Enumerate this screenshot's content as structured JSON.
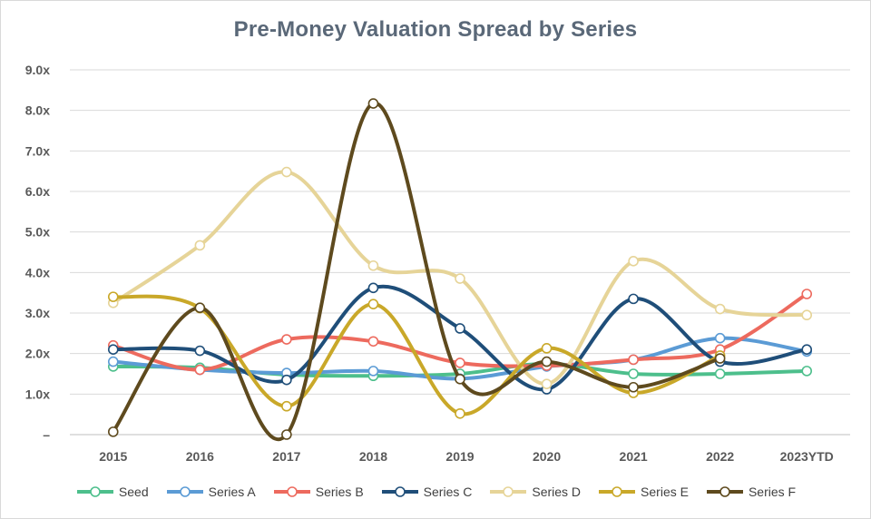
{
  "chart_data": {
    "type": "line",
    "title": "Pre-Money Valuation Spread by Series",
    "xlabel": "",
    "ylabel": "",
    "categories": [
      "2015",
      "2016",
      "2017",
      "2018",
      "2019",
      "2020",
      "2021",
      "2022",
      "2023YTD"
    ],
    "ylim": [
      0,
      9
    ],
    "yticks": [
      {
        "value": 0,
        "label": "–"
      },
      {
        "value": 1,
        "label": "1.0x"
      },
      {
        "value": 2,
        "label": "2.0x"
      },
      {
        "value": 3,
        "label": "3.0x"
      },
      {
        "value": 4,
        "label": "4.0x"
      },
      {
        "value": 5,
        "label": "5.0x"
      },
      {
        "value": 6,
        "label": "6.0x"
      },
      {
        "value": 7,
        "label": "7.0x"
      },
      {
        "value": 8,
        "label": "8.0x"
      },
      {
        "value": 9,
        "label": "9.0x"
      }
    ],
    "grid": true,
    "smooth": true,
    "legend_position": "bottom",
    "series": [
      {
        "name": "Seed",
        "color": "#4dbf8c",
        "values": [
          1.68,
          1.65,
          1.48,
          1.45,
          1.5,
          1.75,
          1.5,
          1.5,
          1.57
        ]
      },
      {
        "name": "Series A",
        "color": "#5b9bd5",
        "values": [
          1.8,
          1.6,
          1.52,
          1.57,
          1.38,
          1.68,
          1.85,
          2.38,
          2.05
        ]
      },
      {
        "name": "Series B",
        "color": "#ed6a5e",
        "values": [
          2.2,
          1.6,
          2.35,
          2.3,
          1.77,
          1.7,
          1.85,
          2.1,
          3.47
        ]
      },
      {
        "name": "Series C",
        "color": "#1f4e79",
        "values": [
          2.1,
          2.07,
          1.35,
          3.62,
          2.62,
          1.12,
          3.35,
          1.8,
          2.1
        ]
      },
      {
        "name": "Series D",
        "color": "#e6d498",
        "values": [
          3.25,
          4.67,
          6.48,
          4.17,
          3.85,
          1.25,
          4.28,
          3.1,
          2.95
        ]
      },
      {
        "name": "Series E",
        "color": "#c9a829",
        "values": [
          3.4,
          3.12,
          0.7,
          3.22,
          0.52,
          2.13,
          1.03,
          1.95,
          null
        ]
      },
      {
        "name": "Series F",
        "color": "#5e4a1e",
        "values": [
          0.07,
          3.13,
          0.0,
          8.17,
          1.37,
          1.8,
          1.17,
          1.88,
          null
        ]
      }
    ]
  }
}
